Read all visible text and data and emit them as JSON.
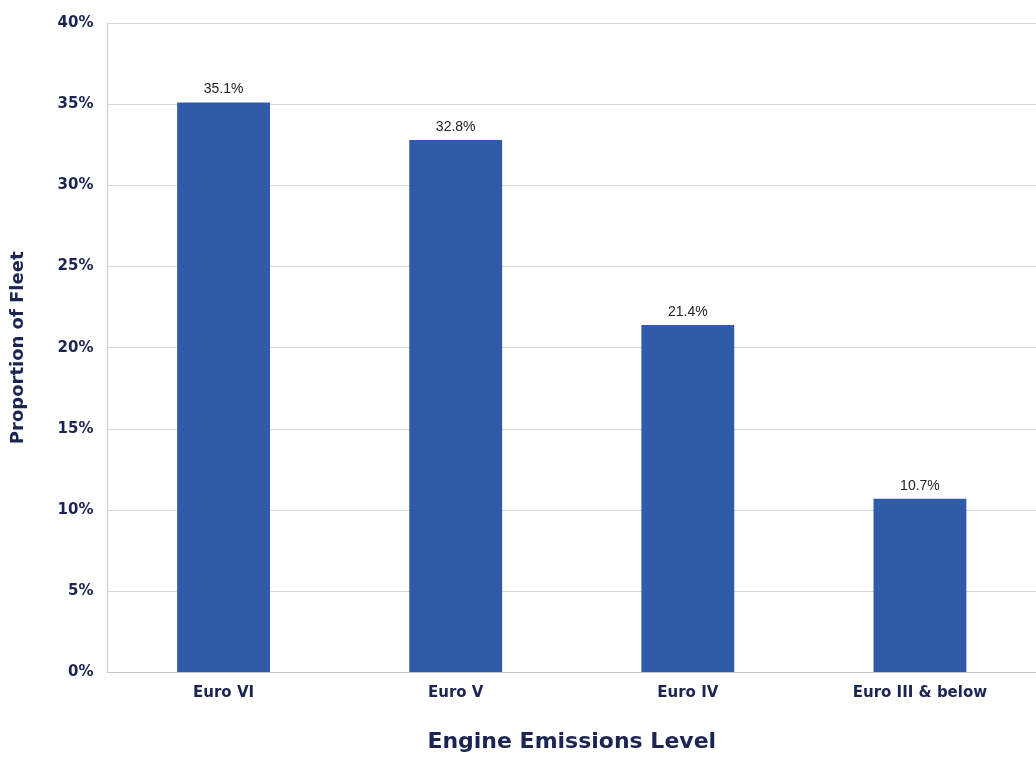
{
  "chart_data": {
    "type": "bar",
    "xlabel": "Engine Emissions Level",
    "ylabel": "Proportion of Fleet",
    "categories": [
      "Euro VI",
      "Euro V",
      "Euro IV",
      "Euro III & below"
    ],
    "values": [
      35.1,
      32.8,
      21.4,
      10.7
    ],
    "color": "#2f5ba8",
    "value_labels": [
      "35.1%",
      "32.8%",
      "21.4%",
      "10.7%"
    ],
    "ylim": [
      0,
      40
    ],
    "yticks": [
      {
        "value": 0,
        "label": "0%"
      },
      {
        "value": 5,
        "label": "5%"
      },
      {
        "value": 10,
        "label": "10%"
      },
      {
        "value": 15,
        "label": "15%"
      },
      {
        "value": 20,
        "label": "20%"
      },
      {
        "value": 25,
        "label": "25%"
      },
      {
        "value": 30,
        "label": "30%"
      },
      {
        "value": 35,
        "label": "35%"
      },
      {
        "value": 40,
        "label": "40%"
      }
    ],
    "grid": "y",
    "legend": false
  }
}
